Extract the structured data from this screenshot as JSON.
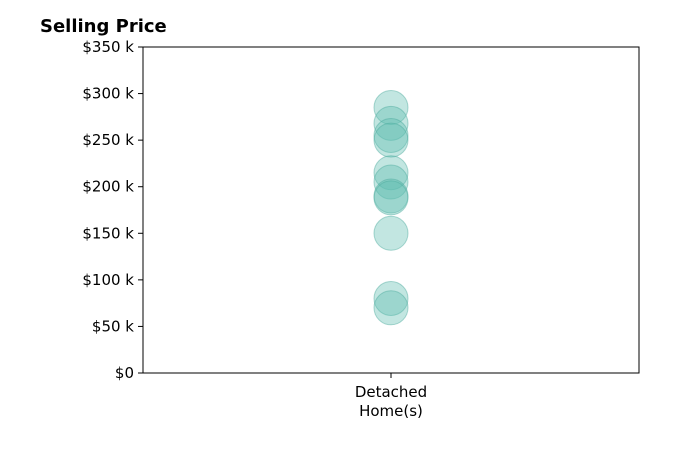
{
  "chart_data": {
    "type": "scatter",
    "title": "Selling Price",
    "xlabel": "",
    "ylabel": "",
    "categories": [
      "Detached\nHome(s)"
    ],
    "category_lines": [
      [
        "Detached",
        "Home(s)"
      ]
    ],
    "ylim": [
      0,
      350000
    ],
    "y_ticks": [
      0,
      50000,
      100000,
      150000,
      200000,
      250000,
      300000,
      350000
    ],
    "y_tick_labels": [
      "$0",
      "$50 k",
      "$100 k",
      "$150 k",
      "$200 k",
      "$250 k",
      "$300 k",
      "$350 k"
    ],
    "grid": false,
    "series": [
      {
        "category": "Detached\nHome(s)",
        "values": [
          285000,
          268000,
          255000,
          250000,
          215000,
          205000,
          190000,
          188000,
          150000,
          80000,
          70000
        ]
      }
    ],
    "colors": {
      "marker": "#5fbcb0",
      "marker_edge": "#4aa99c",
      "axis": "#000000"
    }
  }
}
